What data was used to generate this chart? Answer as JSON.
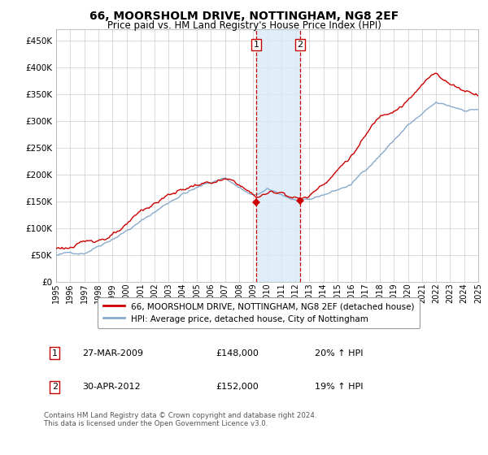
{
  "title": "66, MOORSHOLM DRIVE, NOTTINGHAM, NG8 2EF",
  "subtitle": "Price paid vs. HM Land Registry's House Price Index (HPI)",
  "hpi_label": "HPI: Average price, detached house, City of Nottingham",
  "property_label": "66, MOORSHOLM DRIVE, NOTTINGHAM, NG8 2EF (detached house)",
  "sale1_date": "27-MAR-2009",
  "sale1_price": 148000,
  "sale1_hpi": "20% ↑ HPI",
  "sale1_year": 2009.23,
  "sale2_date": "30-APR-2012",
  "sale2_price": 152000,
  "sale2_hpi": "19% ↑ HPI",
  "sale2_year": 2012.33,
  "xmin": 1995,
  "xmax": 2025,
  "ymin": 0,
  "ymax": 470000,
  "yticks": [
    0,
    50000,
    100000,
    150000,
    200000,
    250000,
    300000,
    350000,
    400000,
    450000
  ],
  "ylabels": [
    "£0",
    "£50K",
    "£100K",
    "£150K",
    "£200K",
    "£250K",
    "£300K",
    "£350K",
    "£400K",
    "£450K"
  ],
  "line_color_red": "#cc0000",
  "line_color_blue": "#88aacc",
  "marker_color": "#cc0000",
  "shade_color": "#d8eaf8",
  "vline_color": "#cc0000",
  "grid_color": "#cccccc",
  "background_color": "#ffffff",
  "footer_text": "Contains HM Land Registry data © Crown copyright and database right 2024.\nThis data is licensed under the Open Government Licence v3.0.",
  "xticks": [
    1995,
    1996,
    1997,
    1998,
    1999,
    2000,
    2001,
    2002,
    2003,
    2004,
    2005,
    2006,
    2007,
    2008,
    2009,
    2010,
    2011,
    2012,
    2013,
    2014,
    2015,
    2016,
    2017,
    2018,
    2019,
    2020,
    2021,
    2022,
    2023,
    2024,
    2025
  ]
}
